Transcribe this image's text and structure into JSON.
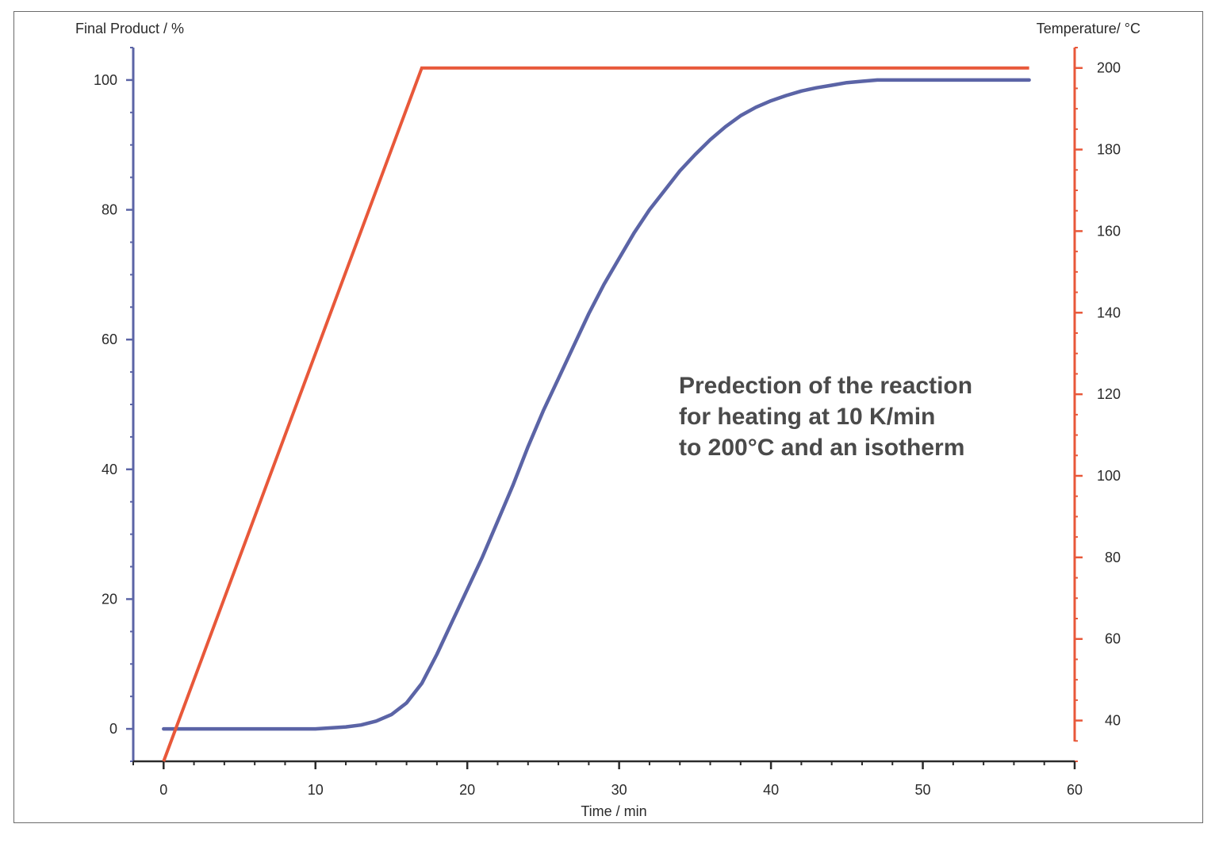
{
  "chart_data": {
    "type": "line",
    "title": "",
    "xlabel": "Time / min",
    "ylabel_left": "Final Product / %",
    "ylabel_right": "Temperature/ °C",
    "xlim": [
      -2,
      60
    ],
    "ylim_left": [
      -5,
      105
    ],
    "ylim_right": [
      30,
      205
    ],
    "x_ticks": [
      0,
      10,
      20,
      30,
      40,
      50,
      60
    ],
    "y_left_ticks": [
      0,
      20,
      40,
      60,
      80,
      100
    ],
    "y_right_ticks": [
      40,
      60,
      80,
      100,
      120,
      140,
      160,
      180,
      200
    ],
    "annotation": [
      "Predection of the reaction",
      "for heating at 10 K/min",
      "to 200°C and an isotherm"
    ],
    "colors": {
      "product": "#5b64a6",
      "temperature": "#e8583a"
    },
    "series": [
      {
        "axis": "left",
        "x": [
          0,
          10,
          12,
          13,
          14,
          15,
          16,
          17,
          18,
          19,
          20,
          21,
          22,
          23,
          24,
          25,
          26,
          27,
          28,
          29,
          30,
          31,
          32,
          33,
          34,
          35,
          36,
          37,
          38,
          39,
          40,
          41,
          42,
          43,
          44,
          45,
          46,
          47,
          50,
          57
        ],
        "values": [
          0,
          0,
          0.3,
          0.6,
          1.2,
          2.2,
          4,
          7,
          11.5,
          16.5,
          21.5,
          26.5,
          32,
          37.5,
          43.5,
          49,
          54,
          59,
          64,
          68.5,
          72.5,
          76.5,
          80,
          83,
          86,
          88.5,
          90.8,
          92.8,
          94.5,
          95.8,
          96.8,
          97.6,
          98.3,
          98.8,
          99.2,
          99.6,
          99.8,
          100,
          100,
          100
        ]
      },
      {
        "axis": "right",
        "x": [
          0,
          17,
          57
        ],
        "values": [
          30,
          200,
          200
        ]
      }
    ]
  }
}
